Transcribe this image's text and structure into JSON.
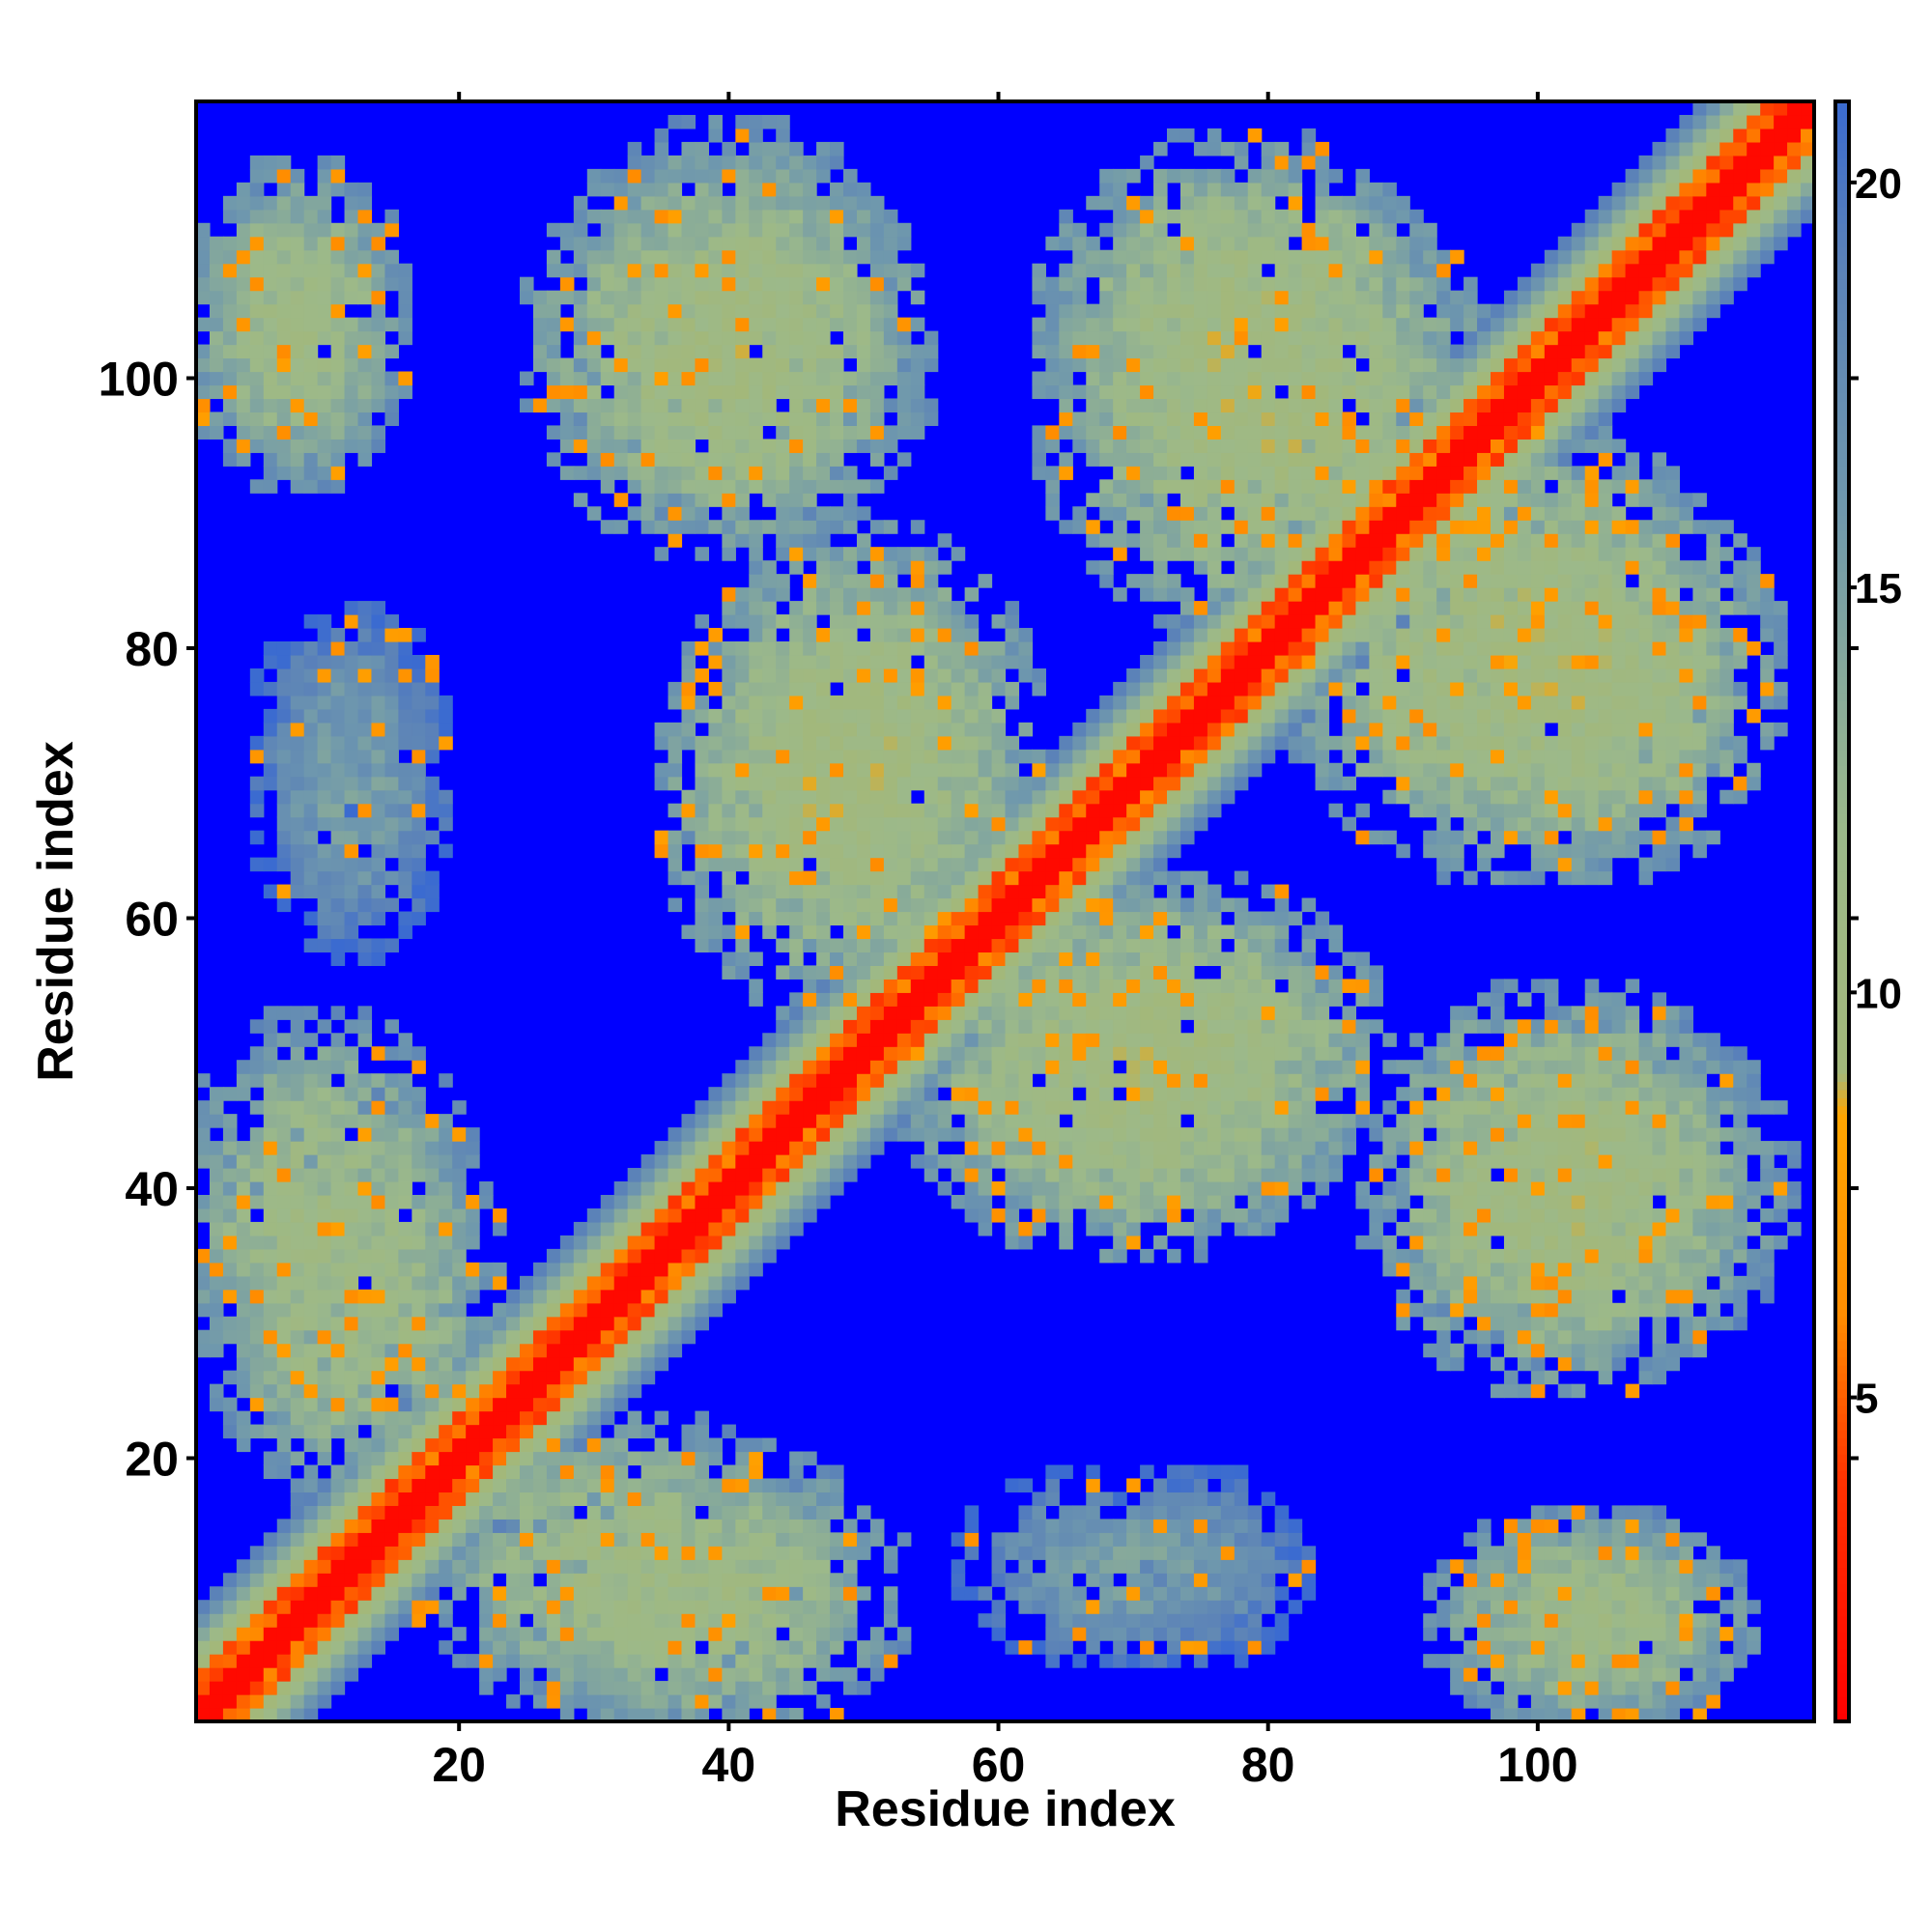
{
  "chart_data": {
    "type": "heatmap",
    "title": "",
    "xlabel": "Residue index",
    "ylabel": "Residue index",
    "xlim": [
      1,
      120
    ],
    "ylim": [
      1,
      120
    ],
    "x_ticks": [
      20,
      40,
      60,
      80,
      100
    ],
    "y_ticks": [
      20,
      40,
      60,
      80,
      100
    ],
    "colorbar": {
      "range": [
        1,
        21
      ],
      "ticks": [
        5,
        10,
        15,
        20
      ],
      "palette": [
        {
          "value": 1,
          "color": "#ff0000"
        },
        {
          "value": 4,
          "color": "#ff3300"
        },
        {
          "value": 6,
          "color": "#ff8c00"
        },
        {
          "value": 8.5,
          "color": "#ffa500"
        },
        {
          "value": 9,
          "color": "#a3b87a"
        },
        {
          "value": 12,
          "color": "#9cb98a"
        },
        {
          "value": 16,
          "color": "#6f98ad"
        },
        {
          "value": 19,
          "color": "#5b82b8"
        },
        {
          "value": 21,
          "color": "#3b6bd0"
        }
      ],
      "background_color": "#0000ff"
    },
    "description": "Residue-residue distance/contact map; red-orange diagonal band, pale green-grey contact clusters, blue for no contact. Approximate value field reproduced as clusters.",
    "diagonal": {
      "core_value": 2,
      "band_halfwidth": 8
    },
    "clusters": [
      {
        "cx": 8,
        "cy": 104,
        "rx": 9,
        "ry": 12,
        "value": 11
      },
      {
        "cx": 40,
        "cy": 104,
        "rx": 14,
        "ry": 16,
        "value": 11
      },
      {
        "cx": 48,
        "cy": 70,
        "rx": 14,
        "ry": 18,
        "value": 10
      },
      {
        "cx": 80,
        "cy": 98,
        "rx": 18,
        "ry": 18,
        "value": 10
      },
      {
        "cx": 103,
        "cy": 78,
        "rx": 16,
        "ry": 16,
        "value": 10
      },
      {
        "cx": 72,
        "cy": 50,
        "rx": 18,
        "ry": 14,
        "value": 10
      },
      {
        "cx": 102,
        "cy": 40,
        "rx": 16,
        "ry": 16,
        "value": 10
      },
      {
        "cx": 10,
        "cy": 38,
        "rx": 12,
        "ry": 16,
        "value": 11
      },
      {
        "cx": 32,
        "cy": 12,
        "rx": 16,
        "ry": 12,
        "value": 11
      },
      {
        "cx": 104,
        "cy": 8,
        "rx": 13,
        "ry": 9,
        "value": 11
      },
      {
        "cx": 70,
        "cy": 12,
        "rx": 14,
        "ry": 8,
        "value": 15
      },
      {
        "cx": 12,
        "cy": 75,
        "rx": 8,
        "ry": 8,
        "value": 16
      }
    ]
  }
}
